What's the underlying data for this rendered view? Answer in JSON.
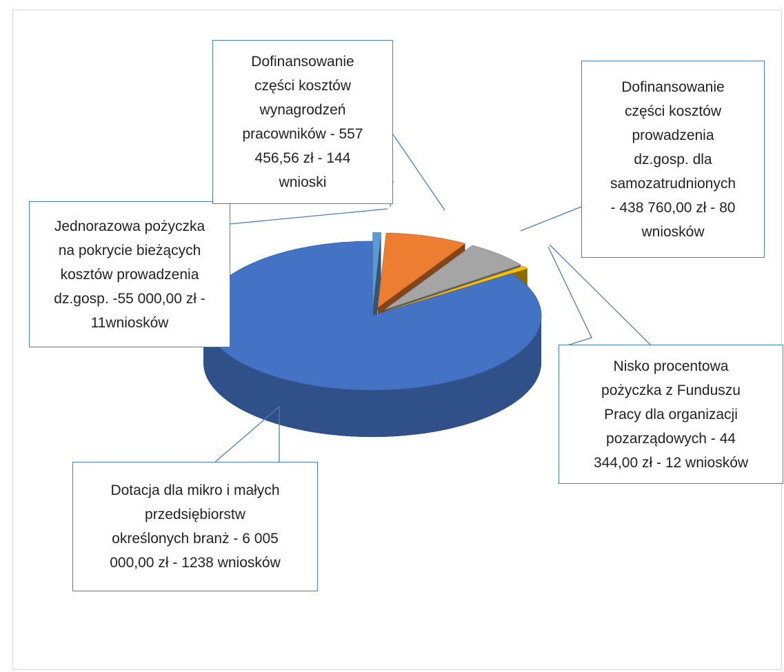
{
  "chart_data": {
    "type": "pie3d",
    "categories": [
      "Jednorazowa pożyczka\nna pokrycie bieżących\nkosztów prowadzenia\ndz.gosp. -55 000,00 zł -\n11wniosków",
      "Dofinansowanie\nczęści kosztów\nwynagrodzeń\npracowników - 557\n456,56 zł - 144\nwnioski",
      "Dofinansowanie\nczęści kosztów\nprowadzenia\ndz.gosp. dla\nsamozatrudnionych\n- 438 760,00  zł - 80\nwniosków",
      "Nisko procentowa\npożyczka z Funduszu\nPracy dla organizacji\npozarządowych - 44\n344,00 zł - 12 wniosków",
      "Dotacja dla mikro i małych\nprzedsiębiorstw\nokreślonych branż - 6 005\n000,00 zł - 1238 wniosków"
    ],
    "values": [
      55000,
      557456.56,
      438760,
      44344,
      6005000
    ],
    "colors": [
      "#5b9bd5",
      "#ed7d31",
      "#a5a5a5",
      "#ffc000",
      "#4472c4"
    ]
  }
}
